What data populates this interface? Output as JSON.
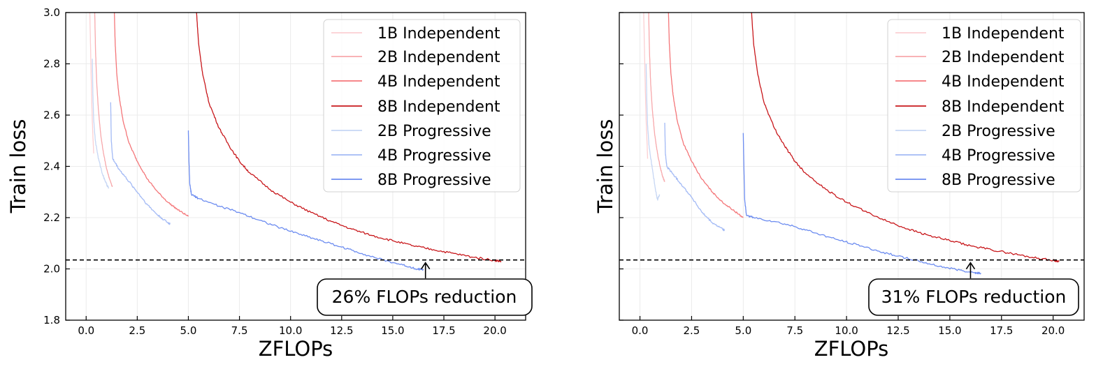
{
  "chart_data": [
    {
      "type": "line",
      "xlabel": "ZFLOPs",
      "ylabel": "Train loss",
      "xlim": [
        -1.0,
        21.5
      ],
      "ylim": [
        1.8,
        3.0
      ],
      "xticks": [
        0.0,
        2.5,
        5.0,
        7.5,
        10.0,
        12.5,
        15.0,
        17.5,
        20.0
      ],
      "xtick_labels": [
        "0.0",
        "2.5",
        "5.0",
        "7.5",
        "10.0",
        "12.5",
        "15.0",
        "17.5",
        "20.0"
      ],
      "yticks": [
        1.8,
        2.0,
        2.2,
        2.4,
        2.6,
        2.8,
        3.0
      ],
      "ytick_labels": [
        "1.8",
        "2.0",
        "2.2",
        "2.4",
        "2.6",
        "2.8",
        "3.0"
      ],
      "grid": true,
      "legend_position": "top-right",
      "reference_line_y": 2.035,
      "annotation": {
        "text": "26% FLOPs reduction",
        "arrow_x": 16.6,
        "arrow_y": 2.035
      },
      "series": [
        {
          "name": "1B Independent",
          "color": "#fbcfd2",
          "points": [
            [
              0.18,
              3.0
            ],
            [
              0.22,
              2.85
            ],
            [
              0.26,
              2.7
            ],
            [
              0.3,
              2.58
            ],
            [
              0.34,
              2.5
            ],
            [
              0.37,
              2.45
            ]
          ]
        },
        {
          "name": "2B Independent",
          "color": "#f7a8ab",
          "points": [
            [
              0.42,
              3.0
            ],
            [
              0.46,
              2.85
            ],
            [
              0.52,
              2.72
            ],
            [
              0.6,
              2.62
            ],
            [
              0.72,
              2.52
            ],
            [
              0.85,
              2.45
            ],
            [
              1.0,
              2.39
            ],
            [
              1.15,
              2.35
            ],
            [
              1.28,
              2.32
            ]
          ]
        },
        {
          "name": "4B Independent",
          "color": "#f47679",
          "points": [
            [
              1.38,
              3.0
            ],
            [
              1.42,
              2.88
            ],
            [
              1.5,
              2.76
            ],
            [
              1.6,
              2.68
            ],
            [
              1.8,
              2.58
            ],
            [
              2.1,
              2.49
            ],
            [
              2.5,
              2.42
            ],
            [
              3.0,
              2.35
            ],
            [
              3.5,
              2.3
            ],
            [
              4.0,
              2.26
            ],
            [
              4.5,
              2.23
            ],
            [
              5.0,
              2.205
            ]
          ]
        },
        {
          "name": "8B Independent",
          "color": "#c8171b",
          "points": [
            [
              5.4,
              3.0
            ],
            [
              5.5,
              2.88
            ],
            [
              5.7,
              2.76
            ],
            [
              6.0,
              2.65
            ],
            [
              6.5,
              2.55
            ],
            [
              7.0,
              2.48
            ],
            [
              7.5,
              2.42
            ],
            [
              8.0,
              2.375
            ],
            [
              9.0,
              2.31
            ],
            [
              10.0,
              2.26
            ],
            [
              11.0,
              2.22
            ],
            [
              12.0,
              2.185
            ],
            [
              13.0,
              2.155
            ],
            [
              14.0,
              2.13
            ],
            [
              15.0,
              2.11
            ],
            [
              16.0,
              2.09
            ],
            [
              17.0,
              2.075
            ],
            [
              18.0,
              2.06
            ],
            [
              19.0,
              2.045
            ],
            [
              20.0,
              2.033
            ],
            [
              20.3,
              2.03
            ]
          ]
        },
        {
          "name": "2B Progressive",
          "color": "#c6d6f4",
          "points": [
            [
              0.3,
              2.82
            ],
            [
              0.33,
              2.68
            ],
            [
              0.37,
              2.58
            ],
            [
              0.45,
              2.5
            ],
            [
              0.6,
              2.43
            ],
            [
              0.8,
              2.37
            ],
            [
              1.0,
              2.33
            ],
            [
              1.1,
              2.315
            ]
          ]
        },
        {
          "name": "4B Progressive",
          "color": "#a3baf5",
          "points": [
            [
              1.2,
              2.65
            ],
            [
              1.23,
              2.5
            ],
            [
              1.3,
              2.43
            ],
            [
              1.6,
              2.39
            ],
            [
              2.0,
              2.35
            ],
            [
              2.5,
              2.3
            ],
            [
              3.0,
              2.25
            ],
            [
              3.5,
              2.21
            ],
            [
              4.0,
              2.18
            ],
            [
              4.1,
              2.175
            ]
          ]
        },
        {
          "name": "8B Progressive",
          "color": "#6c8cf0",
          "points": [
            [
              5.0,
              2.54
            ],
            [
              5.03,
              2.42
            ],
            [
              5.07,
              2.33
            ],
            [
              5.15,
              2.29
            ],
            [
              5.5,
              2.275
            ],
            [
              6.5,
              2.245
            ],
            [
              7.5,
              2.22
            ],
            [
              8.5,
              2.19
            ],
            [
              9.5,
              2.16
            ],
            [
              10.5,
              2.135
            ],
            [
              11.5,
              2.11
            ],
            [
              12.5,
              2.085
            ],
            [
              13.5,
              2.06
            ],
            [
              14.5,
              2.035
            ],
            [
              15.5,
              2.015
            ],
            [
              16.2,
              2.0
            ],
            [
              16.5,
              1.998
            ]
          ]
        }
      ]
    },
    {
      "type": "line",
      "xlabel": "ZFLOPs",
      "ylabel": "Train loss",
      "xlim": [
        -1.0,
        21.5
      ],
      "ylim": [
        1.8,
        3.0
      ],
      "xticks": [
        0.0,
        2.5,
        5.0,
        7.5,
        10.0,
        12.5,
        15.0,
        17.5,
        20.0
      ],
      "xtick_labels": [
        "0.0",
        "2.5",
        "5.0",
        "7.5",
        "10.0",
        "12.5",
        "15.0",
        "17.5",
        "20.0"
      ],
      "yticks": [
        1.8,
        2.0,
        2.2,
        2.4,
        2.6,
        2.8,
        3.0
      ],
      "ytick_labels": [],
      "grid": true,
      "legend_position": "top-right",
      "reference_line_y": 2.035,
      "annotation": {
        "text": "31% FLOPs reduction",
        "arrow_x": 16.0,
        "arrow_y": 2.035
      },
      "series": [
        {
          "name": "1B Independent",
          "color": "#fbcfd2",
          "points": [
            [
              0.18,
              3.0
            ],
            [
              0.22,
              2.85
            ],
            [
              0.26,
              2.7
            ],
            [
              0.3,
              2.58
            ],
            [
              0.34,
              2.5
            ],
            [
              0.37,
              2.43
            ]
          ]
        },
        {
          "name": "2B Independent",
          "color": "#f7a8ab",
          "points": [
            [
              0.42,
              3.0
            ],
            [
              0.46,
              2.85
            ],
            [
              0.52,
              2.72
            ],
            [
              0.6,
              2.62
            ],
            [
              0.72,
              2.52
            ],
            [
              0.85,
              2.45
            ],
            [
              1.0,
              2.39
            ],
            [
              1.1,
              2.36
            ],
            [
              1.2,
              2.34
            ]
          ]
        },
        {
          "name": "4B Independent",
          "color": "#f47679",
          "points": [
            [
              1.38,
              3.0
            ],
            [
              1.42,
              2.88
            ],
            [
              1.5,
              2.76
            ],
            [
              1.6,
              2.68
            ],
            [
              1.8,
              2.58
            ],
            [
              2.1,
              2.49
            ],
            [
              2.5,
              2.42
            ],
            [
              3.0,
              2.35
            ],
            [
              3.5,
              2.3
            ],
            [
              4.0,
              2.26
            ],
            [
              4.5,
              2.23
            ],
            [
              5.0,
              2.2
            ]
          ]
        },
        {
          "name": "8B Independent",
          "color": "#c8171b",
          "points": [
            [
              5.4,
              3.0
            ],
            [
              5.5,
              2.88
            ],
            [
              5.7,
              2.76
            ],
            [
              6.0,
              2.65
            ],
            [
              6.5,
              2.55
            ],
            [
              7.0,
              2.48
            ],
            [
              7.5,
              2.42
            ],
            [
              8.0,
              2.375
            ],
            [
              9.0,
              2.31
            ],
            [
              10.0,
              2.26
            ],
            [
              11.0,
              2.22
            ],
            [
              12.0,
              2.185
            ],
            [
              13.0,
              2.155
            ],
            [
              14.0,
              2.13
            ],
            [
              15.0,
              2.11
            ],
            [
              16.0,
              2.09
            ],
            [
              17.0,
              2.075
            ],
            [
              18.0,
              2.06
            ],
            [
              19.0,
              2.045
            ],
            [
              20.0,
              2.033
            ],
            [
              20.3,
              2.03
            ]
          ]
        },
        {
          "name": "2B Progressive",
          "color": "#c6d6f4",
          "points": [
            [
              0.3,
              2.8
            ],
            [
              0.33,
              2.66
            ],
            [
              0.37,
              2.56
            ],
            [
              0.45,
              2.47
            ],
            [
              0.6,
              2.39
            ],
            [
              0.75,
              2.31
            ],
            [
              0.85,
              2.27
            ],
            [
              0.95,
              2.29
            ]
          ]
        },
        {
          "name": "4B Progressive",
          "color": "#a3baf5",
          "points": [
            [
              1.2,
              2.57
            ],
            [
              1.23,
              2.45
            ],
            [
              1.3,
              2.4
            ],
            [
              1.6,
              2.37
            ],
            [
              2.0,
              2.33
            ],
            [
              2.5,
              2.28
            ],
            [
              3.0,
              2.22
            ],
            [
              3.5,
              2.18
            ],
            [
              4.0,
              2.155
            ],
            [
              4.1,
              2.15
            ]
          ]
        },
        {
          "name": "8B Progressive",
          "color": "#6c8cf0",
          "points": [
            [
              5.0,
              2.53
            ],
            [
              5.03,
              2.4
            ],
            [
              5.07,
              2.27
            ],
            [
              5.15,
              2.21
            ],
            [
              5.5,
              2.2
            ],
            [
              6.5,
              2.185
            ],
            [
              7.5,
              2.165
            ],
            [
              8.5,
              2.14
            ],
            [
              9.5,
              2.115
            ],
            [
              10.5,
              2.095
            ],
            [
              11.5,
              2.07
            ],
            [
              12.5,
              2.05
            ],
            [
              13.5,
              2.03
            ],
            [
              14.5,
              2.01
            ],
            [
              15.5,
              1.995
            ],
            [
              16.2,
              1.985
            ],
            [
              16.5,
              1.984
            ]
          ]
        }
      ]
    }
  ]
}
